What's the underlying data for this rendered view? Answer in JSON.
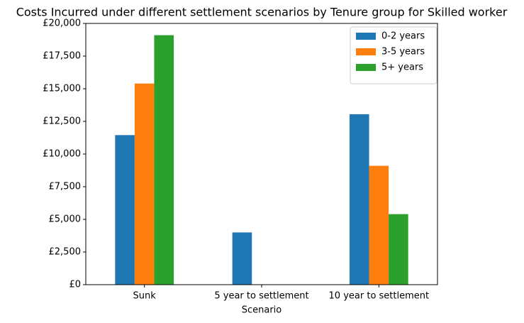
{
  "chart_data": {
    "type": "bar",
    "title": "Costs Incurred under different settlement scenarios by Tenure group for Skilled worker",
    "x_label": "Scenario",
    "categories": [
      "Sunk",
      "5 year to settlement",
      "10 year to settlement"
    ],
    "series": [
      {
        "name": "0-2 years",
        "color": "#1f77b4",
        "values": [
          11450,
          4000,
          13050
        ]
      },
      {
        "name": "3-5 years",
        "color": "#ff7f0e",
        "values": [
          15400,
          0,
          9100
        ]
      },
      {
        "name": "5+ years",
        "color": "#2ca02c",
        "values": [
          19100,
          0,
          5400
        ]
      }
    ],
    "ylim": [
      0,
      20000
    ],
    "yticks": [
      {
        "value": 0,
        "label": "£0"
      },
      {
        "value": 2500,
        "label": "£2,500"
      },
      {
        "value": 5000,
        "label": "£5,000"
      },
      {
        "value": 7500,
        "label": "£7,500"
      },
      {
        "value": 10000,
        "label": "£10,000"
      },
      {
        "value": 12500,
        "label": "£12,500"
      },
      {
        "value": 15000,
        "label": "£15,000"
      },
      {
        "value": 17500,
        "label": "£17,500"
      },
      {
        "value": 20000,
        "label": "£20,000"
      }
    ],
    "legend": "upper right",
    "grid": false
  }
}
